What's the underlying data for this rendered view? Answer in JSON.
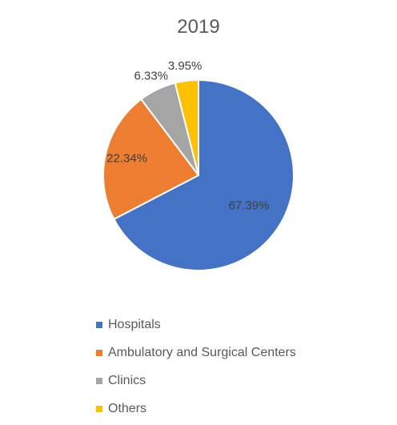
{
  "chart_data": {
    "type": "pie",
    "title": "2019",
    "categories": [
      "Hospitals",
      "Ambulatory and Surgical Centers",
      "Clinics",
      "Others"
    ],
    "values": [
      67.39,
      22.34,
      6.33,
      3.95
    ],
    "data_labels": [
      "67.39%",
      "22.34%",
      "6.33%",
      "3.95%"
    ],
    "colors": [
      "#4472C4",
      "#ED7D31",
      "#A5A5A5",
      "#FFC000"
    ],
    "legend_position": "bottom",
    "start_angle": "12 o'clock",
    "direction": "clockwise"
  }
}
